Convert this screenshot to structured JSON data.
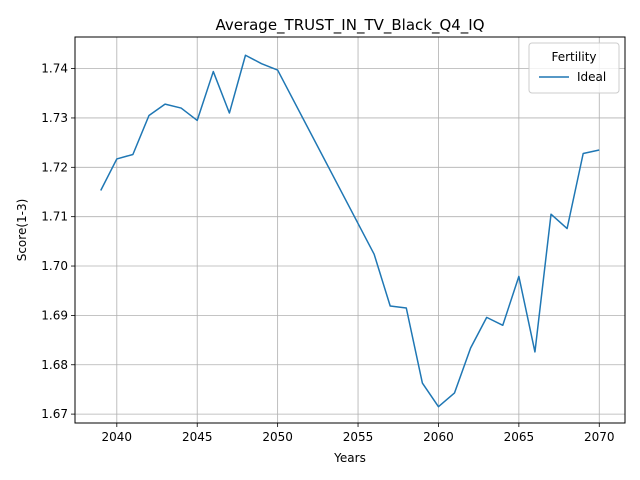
{
  "chart_data": {
    "type": "line",
    "title": "Average_TRUST_IN_TV_Black_Q4_IQ",
    "xlabel": "Years",
    "ylabel": "Score(1-3)",
    "xlim": [
      2037.4,
      2071.6
    ],
    "ylim": [
      1.6682,
      1.7464
    ],
    "xticks": [
      2040,
      2045,
      2050,
      2055,
      2060,
      2065,
      2070
    ],
    "yticks": [
      1.67,
      1.68,
      1.69,
      1.7,
      1.71,
      1.72,
      1.73,
      1.74
    ],
    "ytick_labels": [
      "1.67",
      "1.68",
      "1.69",
      "1.70",
      "1.71",
      "1.72",
      "1.73",
      "1.74"
    ],
    "grid": true,
    "legend": {
      "title": "Fertility",
      "placement": "top-right"
    },
    "series": [
      {
        "name": "Ideal",
        "color": "#1f77b4",
        "x": [
          2039,
          2040,
          2041,
          2042,
          2043,
          2044,
          2045,
          2046,
          2047,
          2048,
          2049,
          2050,
          2056,
          2057,
          2058,
          2059,
          2060,
          2061,
          2062,
          2063,
          2064,
          2065,
          2066,
          2067,
          2068,
          2069,
          2070
        ],
        "y": [
          1.7153,
          1.7217,
          1.7226,
          1.7305,
          1.7328,
          1.732,
          1.7295,
          1.7394,
          1.731,
          1.7427,
          1.741,
          1.7397,
          1.7024,
          1.6919,
          1.6915,
          1.6763,
          1.6715,
          1.6743,
          1.6834,
          1.6896,
          1.688,
          1.6979,
          1.6826,
          1.7105,
          1.7076,
          1.7228,
          1.7235
        ]
      }
    ]
  }
}
